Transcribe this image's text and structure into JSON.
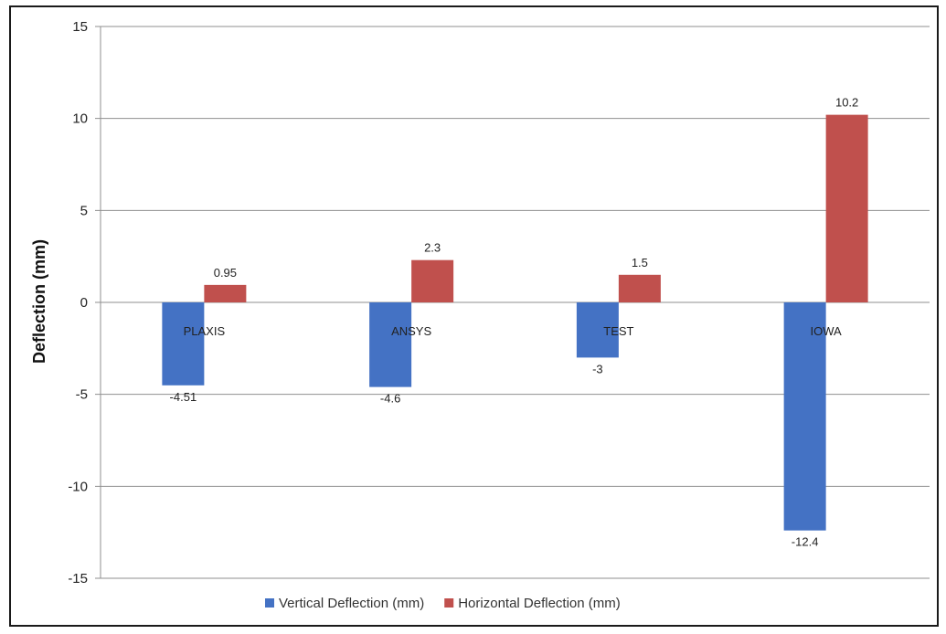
{
  "chart_data": {
    "type": "bar",
    "categories": [
      "PLAXIS",
      "ANSYS",
      "TEST",
      "IOWA"
    ],
    "series": [
      {
        "name": "Vertical Deflection (mm)",
        "values": [
          -4.51,
          -4.6,
          -3,
          -12.4
        ],
        "labels": [
          "-4.51",
          "-4.6",
          "-3",
          "-12.4"
        ],
        "color": "#4472c4"
      },
      {
        "name": "Horizontal Deflection (mm)",
        "values": [
          0.95,
          2.3,
          1.5,
          10.2
        ],
        "labels": [
          "0.95",
          "2.3",
          "1.5",
          "10.2"
        ],
        "color": "#c0504d"
      }
    ],
    "title": "",
    "xlabel": "",
    "ylabel": "Deflection (mm)",
    "ylim": [
      -15,
      15
    ],
    "yticks": [
      "15",
      "10",
      "5",
      "0",
      "-5",
      "-10",
      "-15"
    ],
    "grid": true,
    "legend_position": "bottom"
  }
}
